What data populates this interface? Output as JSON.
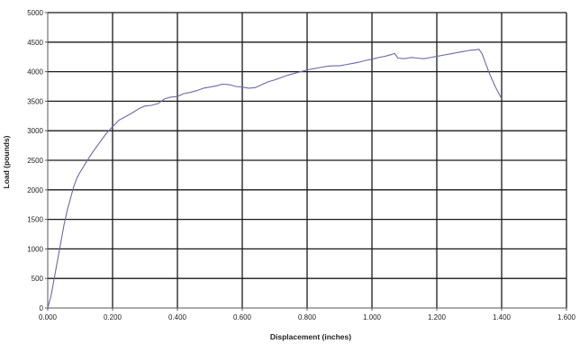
{
  "chart_data": {
    "type": "line",
    "title": "",
    "xlabel": "Displacement (inches)",
    "ylabel": "Load (pounds)",
    "xlim": [
      0,
      1.6
    ],
    "ylim": [
      0,
      5000
    ],
    "x_ticks": [
      "0.000",
      "0.200",
      "0.400",
      "0.600",
      "0.800",
      "1.000",
      "1.200",
      "1.400",
      "1.600"
    ],
    "y_ticks": [
      "0",
      "500",
      "1000",
      "1500",
      "2000",
      "2500",
      "3000",
      "3500",
      "4000",
      "4500",
      "5000"
    ],
    "grid": true,
    "legend": "none",
    "colors": {
      "line": "#6a6aa8",
      "grid": "#1a1a1a",
      "axis": "#555555"
    },
    "series": [
      {
        "x": [
          0.0,
          0.01,
          0.02,
          0.03,
          0.04,
          0.05,
          0.06,
          0.07,
          0.08,
          0.09,
          0.1,
          0.12,
          0.14,
          0.16,
          0.18,
          0.2,
          0.22,
          0.24,
          0.26,
          0.28,
          0.3,
          0.32,
          0.34,
          0.36,
          0.38,
          0.4,
          0.42,
          0.44,
          0.46,
          0.48,
          0.5,
          0.52,
          0.54,
          0.56,
          0.58,
          0.6,
          0.62,
          0.64,
          0.66,
          0.68,
          0.7,
          0.72,
          0.74,
          0.76,
          0.78,
          0.8,
          0.82,
          0.84,
          0.86,
          0.88,
          0.9,
          0.92,
          0.94,
          0.96,
          0.98,
          1.0,
          1.02,
          1.04,
          1.06,
          1.07,
          1.08,
          1.1,
          1.12,
          1.14,
          1.16,
          1.18,
          1.2,
          1.22,
          1.24,
          1.26,
          1.28,
          1.3,
          1.32,
          1.33,
          1.34,
          1.36,
          1.38,
          1.4
        ],
        "y": [
          0,
          200,
          500,
          800,
          1100,
          1400,
          1650,
          1850,
          2050,
          2200,
          2300,
          2480,
          2650,
          2800,
          2950,
          3070,
          3180,
          3240,
          3300,
          3370,
          3420,
          3430,
          3460,
          3540,
          3570,
          3580,
          3630,
          3650,
          3680,
          3720,
          3740,
          3760,
          3790,
          3780,
          3750,
          3740,
          3720,
          3730,
          3780,
          3830,
          3860,
          3900,
          3940,
          3970,
          4000,
          4030,
          4050,
          4070,
          4090,
          4100,
          4100,
          4120,
          4140,
          4160,
          4190,
          4210,
          4240,
          4260,
          4290,
          4310,
          4230,
          4220,
          4240,
          4230,
          4220,
          4240,
          4260,
          4280,
          4300,
          4320,
          4340,
          4360,
          4370,
          4380,
          4300,
          4000,
          3750,
          3540
        ]
      }
    ]
  }
}
